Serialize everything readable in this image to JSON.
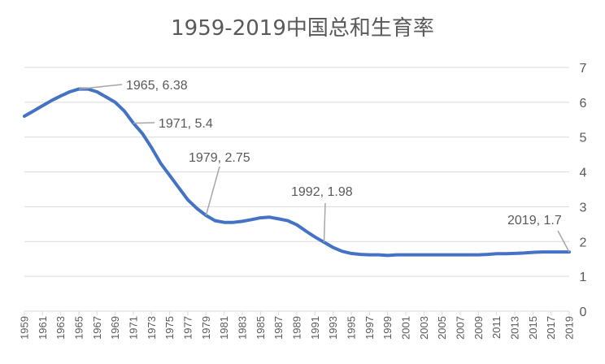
{
  "chart_data": {
    "type": "line",
    "title": "1959-2019中国总和生育率",
    "xlabel": "",
    "ylabel": "",
    "ylim": [
      0,
      7
    ],
    "y_ticks": [
      "0",
      "1",
      "2",
      "3",
      "4",
      "5",
      "6",
      "7"
    ],
    "y_axis_side": "right",
    "grid": true,
    "legend": "none",
    "series_color": "#4472C4",
    "x_tick_labels": [
      "1959",
      "1961",
      "1963",
      "1965",
      "1967",
      "1969",
      "1971",
      "1973",
      "1975",
      "1977",
      "1979",
      "1981",
      "1983",
      "1985",
      "1987",
      "1989",
      "1991",
      "1993",
      "1995",
      "1997",
      "1999",
      "2001",
      "2003",
      "2005",
      "2007",
      "2009",
      "2011",
      "2013",
      "2015",
      "2017",
      "2019"
    ],
    "series": [
      {
        "x": [
          1959,
          1960,
          1961,
          1962,
          1963,
          1964,
          1965,
          1966,
          1967,
          1968,
          1969,
          1970,
          1971,
          1972,
          1973,
          1974,
          1975,
          1976,
          1977,
          1978,
          1979,
          1980,
          1981,
          1982,
          1983,
          1984,
          1985,
          1986,
          1987,
          1988,
          1989,
          1990,
          1991,
          1992,
          1993,
          1994,
          1995,
          1996,
          1997,
          1998,
          1999,
          2000,
          2001,
          2002,
          2003,
          2004,
          2005,
          2006,
          2007,
          2008,
          2009,
          2010,
          2011,
          2012,
          2013,
          2014,
          2015,
          2016,
          2017,
          2018,
          2019
        ],
        "values": [
          5.6,
          5.75,
          5.9,
          6.05,
          6.18,
          6.3,
          6.38,
          6.38,
          6.3,
          6.15,
          6.0,
          5.75,
          5.4,
          5.1,
          4.7,
          4.25,
          3.9,
          3.55,
          3.2,
          2.95,
          2.75,
          2.6,
          2.55,
          2.55,
          2.58,
          2.63,
          2.68,
          2.7,
          2.65,
          2.6,
          2.48,
          2.3,
          2.13,
          1.98,
          1.83,
          1.72,
          1.66,
          1.63,
          1.62,
          1.62,
          1.6,
          1.62,
          1.62,
          1.62,
          1.62,
          1.62,
          1.62,
          1.62,
          1.62,
          1.62,
          1.62,
          1.63,
          1.65,
          1.65,
          1.66,
          1.67,
          1.69,
          1.7,
          1.7,
          1.7,
          1.7
        ]
      }
    ],
    "annotations": [
      {
        "label": "1965, 6.38",
        "x": 1965,
        "y": 6.38
      },
      {
        "label": "1971, 5.4",
        "x": 1971,
        "y": 5.4
      },
      {
        "label": "1979, 2.75",
        "x": 1979,
        "y": 2.75
      },
      {
        "label": "1992, 1.98",
        "x": 1992,
        "y": 1.98
      },
      {
        "label": "2019, 1.7",
        "x": 2019,
        "y": 1.7
      }
    ]
  }
}
